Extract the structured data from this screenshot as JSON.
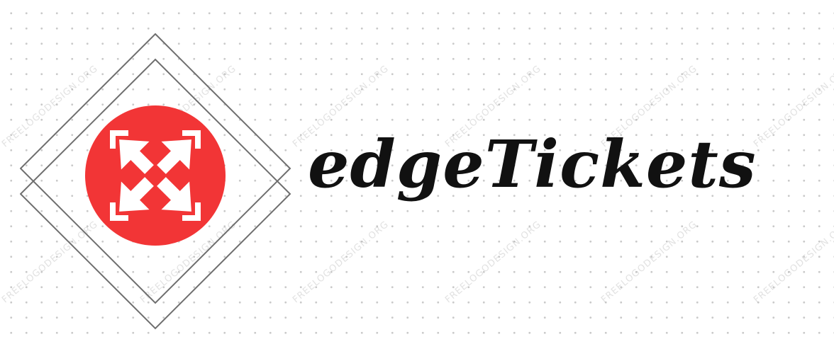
{
  "brand": {
    "name": "edgeTickets",
    "accent_color": "#f23536",
    "text_color": "#111111",
    "frame_color": "#6e6e6e"
  },
  "watermark": {
    "text": "FREELOGODESIGN.ORG"
  },
  "icons": {
    "emblem": "expand-arrows-icon"
  }
}
